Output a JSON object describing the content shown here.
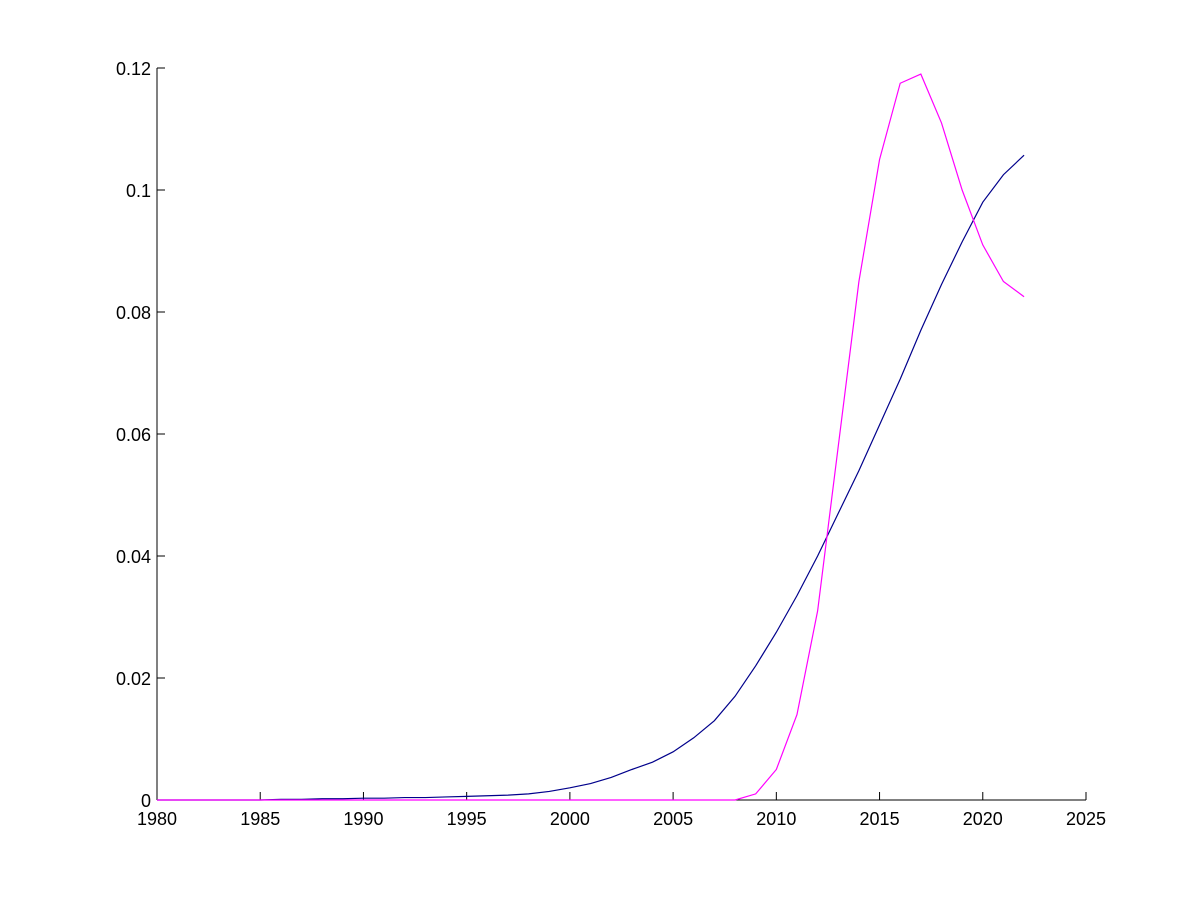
{
  "chart_data": {
    "type": "line",
    "x": [
      1980,
      1981,
      1982,
      1983,
      1984,
      1985,
      1986,
      1987,
      1988,
      1989,
      1990,
      1991,
      1992,
      1993,
      1994,
      1995,
      1996,
      1997,
      1998,
      1999,
      2000,
      2001,
      2002,
      2003,
      2004,
      2005,
      2006,
      2007,
      2008,
      2009,
      2010,
      2011,
      2012,
      2013,
      2014,
      2015,
      2016,
      2017,
      2018,
      2019,
      2020,
      2021,
      2022
    ],
    "series": [
      {
        "color": "#00008b",
        "values": [
          0,
          0,
          0,
          0,
          0,
          0,
          0.0001,
          0.0001,
          0.0002,
          0.0002,
          0.0003,
          0.0003,
          0.0004,
          0.0004,
          0.0005,
          0.0006,
          0.0007,
          0.0008,
          0.001,
          0.0014,
          0.002,
          0.0027,
          0.0037,
          0.005,
          0.0062,
          0.0079,
          0.0102,
          0.013,
          0.017,
          0.022,
          0.0275,
          0.0335,
          0.04,
          0.047,
          0.054,
          0.0615,
          0.069,
          0.077,
          0.0845,
          0.0915,
          0.098,
          0.1025,
          0.1057
        ]
      },
      {
        "color": "#ff00ff",
        "values": [
          0,
          0,
          0,
          0,
          0,
          0,
          0,
          0,
          0,
          0,
          0,
          0,
          0,
          0,
          0,
          0,
          0,
          0,
          0,
          0,
          0,
          0,
          0,
          0,
          0,
          0,
          0,
          0,
          0,
          0.001,
          0.005,
          0.014,
          0.031,
          0.058,
          0.085,
          0.105,
          0.1175,
          0.119,
          0.111,
          0.1,
          0.091,
          0.085,
          0.0825
        ]
      }
    ],
    "xlim": [
      1980,
      2025
    ],
    "xticks": [
      1980,
      1985,
      1990,
      1995,
      2000,
      2005,
      2010,
      2015,
      2020,
      2025
    ],
    "ylim": [
      0,
      0.12
    ],
    "yticks": [
      0,
      0.02,
      0.04,
      0.06,
      0.08,
      0.1,
      0.12
    ]
  }
}
